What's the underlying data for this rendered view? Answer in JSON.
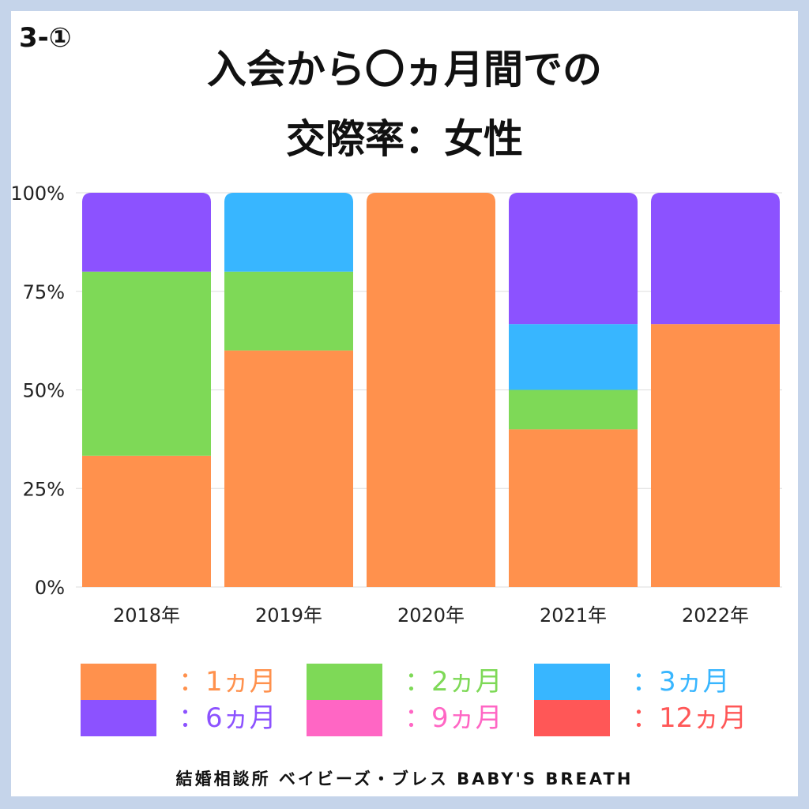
{
  "badge": "3-①",
  "title_line1": "入会から〇ヵ月間での",
  "title_line2": "交際率：女性",
  "footer": "結婚相談所 ベイビーズ・ブレス BABY'S BREATH",
  "chart_data": {
    "type": "bar",
    "stacked": true,
    "categories": [
      "2018年",
      "2019年",
      "2020年",
      "2021年",
      "2022年"
    ],
    "ylim": [
      0,
      100
    ],
    "yticks": [
      "0%",
      "25%",
      "50%",
      "75%",
      "100%"
    ],
    "grid": true,
    "legend_position": "bottom",
    "series": [
      {
        "name": "：1ヵ月",
        "color": "#ff914d",
        "values": [
          33.3,
          60,
          100,
          40,
          66.7
        ]
      },
      {
        "name": "：2ヵ月",
        "color": "#7ed957",
        "values": [
          46.7,
          20,
          0,
          10,
          0
        ]
      },
      {
        "name": "：3ヵ月",
        "color": "#38b6ff",
        "values": [
          0,
          20,
          0,
          16.7,
          0
        ]
      },
      {
        "name": "：6ヵ月",
        "color": "#8c52ff",
        "values": [
          20,
          0,
          0,
          33.3,
          33.3
        ]
      },
      {
        "name": "：9ヵ月",
        "color": "#ff66c4",
        "values": [
          0,
          0,
          0,
          0,
          0
        ]
      },
      {
        "name": "：12ヵ月",
        "color": "#ff5757",
        "values": [
          0,
          0,
          0,
          0,
          0
        ]
      }
    ]
  }
}
